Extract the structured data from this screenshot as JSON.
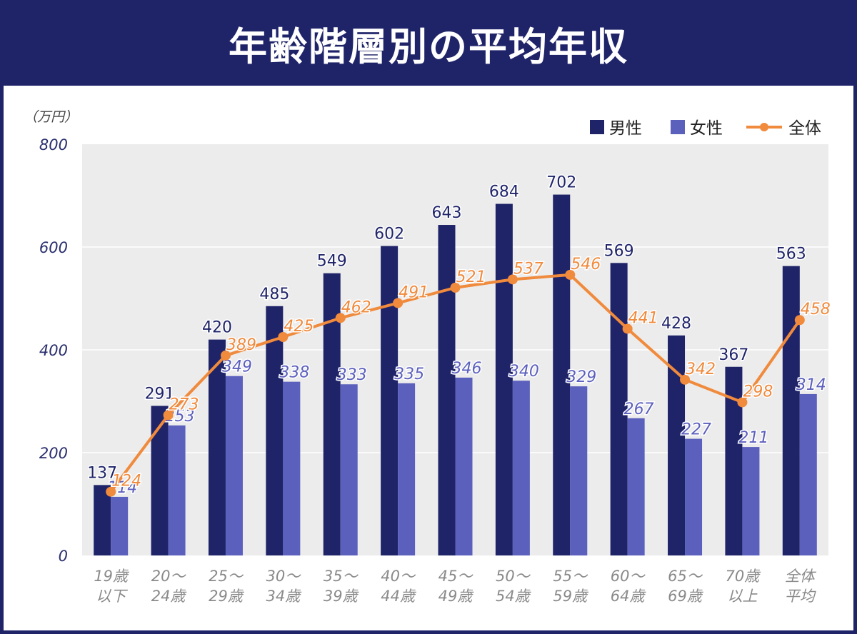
{
  "page": {
    "title": "年齢階層別の平均年収"
  },
  "colors": {
    "background": "#1f2469",
    "plot_bg": "#ececec",
    "male": "#1f2469",
    "female": "#5c60bd",
    "total": "#f08a3c",
    "axis_text": "#2a2f6e",
    "tick_text": "#8a8a8a"
  },
  "chart_data": {
    "type": "bar",
    "title": "年齢階層別の平均年収",
    "unit_label": "（万円）",
    "ylim": [
      0,
      800
    ],
    "yticks": [
      0,
      200,
      400,
      600,
      800
    ],
    "grid": true,
    "legend_position": "top-right",
    "categories": [
      [
        "19歳",
        "以下"
      ],
      [
        "20〜",
        "24歳"
      ],
      [
        "25〜",
        "29歳"
      ],
      [
        "30〜",
        "34歳"
      ],
      [
        "35〜",
        "39歳"
      ],
      [
        "40〜",
        "44歳"
      ],
      [
        "45〜",
        "49歳"
      ],
      [
        "50〜",
        "54歳"
      ],
      [
        "55〜",
        "59歳"
      ],
      [
        "60〜",
        "64歳"
      ],
      [
        "65〜",
        "69歳"
      ],
      [
        "70歳",
        "以上"
      ],
      [
        "全体",
        "平均"
      ]
    ],
    "series": [
      {
        "name": "男性",
        "kind": "bar",
        "values": [
          137,
          291,
          420,
          485,
          549,
          602,
          643,
          684,
          702,
          569,
          428,
          367,
          563
        ]
      },
      {
        "name": "女性",
        "kind": "bar",
        "values": [
          114,
          253,
          349,
          338,
          333,
          335,
          346,
          340,
          329,
          267,
          227,
          211,
          314
        ]
      },
      {
        "name": "全体",
        "kind": "line",
        "values": [
          124,
          273,
          389,
          425,
          462,
          491,
          521,
          537,
          546,
          441,
          342,
          298,
          458
        ]
      }
    ]
  }
}
